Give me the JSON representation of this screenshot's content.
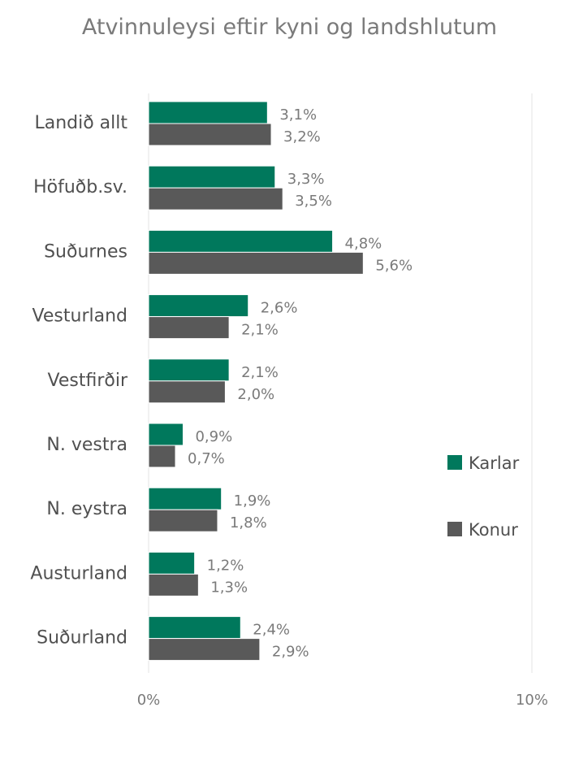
{
  "chart_data": {
    "type": "bar",
    "orientation": "horizontal",
    "title": "Atvinnuleysi eftir kyni og landshlutum",
    "categories": [
      "Landið allt",
      "Höfuðb.sv.",
      "Suðurnes",
      "Vesturland",
      "Vestfirðir",
      "N. vestra",
      "N. eystra",
      "Austurland",
      "Suðurland"
    ],
    "series": [
      {
        "name": "Karlar",
        "color": "#00785c",
        "values": [
          3.1,
          3.3,
          4.8,
          2.6,
          2.1,
          0.9,
          1.9,
          1.2,
          2.4
        ],
        "labels": [
          "3,1%",
          "3,3%",
          "4,8%",
          "2,6%",
          "2,1%",
          "0,9%",
          "1,9%",
          "1,2%",
          "2,4%"
        ]
      },
      {
        "name": "Konur",
        "color": "#595959",
        "values": [
          3.2,
          3.5,
          5.6,
          2.1,
          2.0,
          0.7,
          1.8,
          1.3,
          2.9
        ],
        "labels": [
          "3,2%",
          "3,5%",
          "5,6%",
          "2,1%",
          "2,0%",
          "0,7%",
          "1,8%",
          "1,3%",
          "2,9%"
        ]
      }
    ],
    "xlim": [
      0,
      10
    ],
    "ticks": [
      0,
      10
    ],
    "tick_labels": [
      "0%",
      "10%"
    ],
    "grid": true,
    "legend": "right"
  }
}
